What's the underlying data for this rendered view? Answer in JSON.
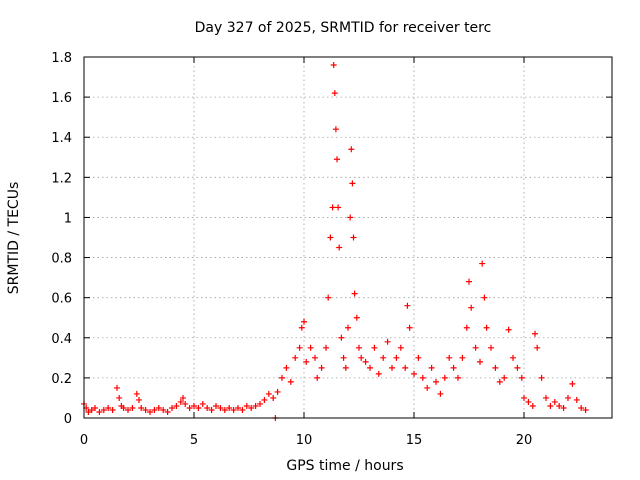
{
  "chart_data": {
    "type": "scatter",
    "title": "Day 327 of 2025, SRMTID for receiver terc",
    "xlabel": "GPS time / hours",
    "ylabel": "SRMTID / TECUs",
    "xlim": [
      0,
      24
    ],
    "ylim": [
      0,
      1.8
    ],
    "xticks": [
      0,
      5,
      10,
      15,
      20
    ],
    "yticks": [
      0,
      0.2,
      0.4,
      0.6,
      0.8,
      1,
      1.2,
      1.4,
      1.6,
      1.8
    ],
    "xtick_labels": [
      "0",
      "5",
      "10",
      "15",
      "20"
    ],
    "ytick_labels": [
      "0",
      "0.2",
      "0.4",
      "0.6",
      "0.8",
      "1",
      "1.2",
      "1.4",
      "1.6",
      "1.8"
    ],
    "grid": true,
    "marker": "+",
    "color": "#ff0000",
    "series": [
      {
        "name": "SRMTID",
        "x": [
          0.0,
          0.1,
          0.2,
          0.35,
          0.5,
          0.7,
          0.9,
          1.1,
          1.3,
          1.5,
          1.6,
          1.7,
          1.8,
          2.0,
          2.2,
          2.4,
          2.5,
          2.6,
          2.8,
          3.0,
          3.2,
          3.4,
          3.6,
          3.8,
          4.0,
          4.2,
          4.4,
          4.5,
          4.6,
          4.8,
          5.0,
          5.2,
          5.4,
          5.6,
          5.8,
          6.0,
          6.2,
          6.4,
          6.6,
          6.8,
          7.0,
          7.2,
          7.4,
          7.6,
          7.8,
          8.0,
          8.2,
          8.4,
          8.6,
          8.7,
          8.8,
          9.0,
          9.2,
          9.4,
          9.6,
          9.8,
          9.9,
          10.0,
          10.1,
          10.3,
          10.5,
          10.6,
          10.8,
          11.0,
          11.1,
          11.2,
          11.3,
          11.35,
          11.4,
          11.45,
          11.5,
          11.55,
          11.6,
          11.7,
          11.8,
          11.9,
          12.0,
          12.1,
          12.15,
          12.2,
          12.25,
          12.3,
          12.4,
          12.5,
          12.6,
          12.8,
          13.0,
          13.2,
          13.4,
          13.6,
          13.8,
          14.0,
          14.2,
          14.4,
          14.6,
          14.7,
          14.8,
          15.0,
          15.2,
          15.4,
          15.6,
          15.8,
          16.0,
          16.2,
          16.4,
          16.6,
          16.8,
          17.0,
          17.2,
          17.4,
          17.5,
          17.6,
          17.8,
          18.0,
          18.1,
          18.2,
          18.3,
          18.5,
          18.7,
          18.9,
          19.1,
          19.3,
          19.5,
          19.7,
          19.9,
          20.0,
          20.2,
          20.4,
          20.5,
          20.6,
          20.8,
          21.0,
          21.2,
          21.4,
          21.6,
          21.8,
          22.0,
          22.2,
          22.4,
          22.6,
          22.8
        ],
        "y": [
          0.07,
          0.05,
          0.03,
          0.04,
          0.05,
          0.03,
          0.04,
          0.05,
          0.04,
          0.15,
          0.1,
          0.06,
          0.05,
          0.04,
          0.05,
          0.12,
          0.09,
          0.05,
          0.04,
          0.03,
          0.04,
          0.05,
          0.04,
          0.03,
          0.05,
          0.06,
          0.08,
          0.1,
          0.07,
          0.05,
          0.06,
          0.05,
          0.07,
          0.05,
          0.04,
          0.06,
          0.05,
          0.04,
          0.05,
          0.04,
          0.05,
          0.04,
          0.06,
          0.05,
          0.06,
          0.07,
          0.09,
          0.12,
          0.1,
          0.0,
          0.13,
          0.2,
          0.25,
          0.18,
          0.3,
          0.35,
          0.45,
          0.48,
          0.28,
          0.35,
          0.3,
          0.2,
          0.25,
          0.35,
          0.6,
          0.9,
          1.05,
          1.76,
          1.62,
          1.44,
          1.29,
          1.05,
          0.85,
          0.4,
          0.3,
          0.25,
          0.45,
          1.0,
          1.34,
          1.17,
          0.9,
          0.62,
          0.5,
          0.35,
          0.3,
          0.28,
          0.25,
          0.35,
          0.22,
          0.3,
          0.38,
          0.25,
          0.3,
          0.35,
          0.25,
          0.56,
          0.45,
          0.22,
          0.3,
          0.2,
          0.15,
          0.25,
          0.18,
          0.12,
          0.2,
          0.3,
          0.25,
          0.2,
          0.3,
          0.45,
          0.68,
          0.55,
          0.35,
          0.28,
          0.77,
          0.6,
          0.45,
          0.35,
          0.25,
          0.18,
          0.2,
          0.44,
          0.3,
          0.25,
          0.2,
          0.1,
          0.08,
          0.06,
          0.42,
          0.35,
          0.2,
          0.1,
          0.06,
          0.08,
          0.06,
          0.05,
          0.1,
          0.17,
          0.09,
          0.05,
          0.04
        ]
      }
    ]
  }
}
